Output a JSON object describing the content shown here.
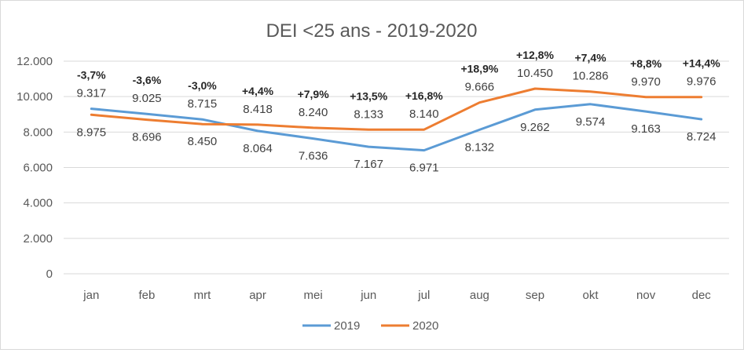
{
  "chart_data": {
    "type": "line",
    "title": "DEI <25 ans - 2019-2020",
    "categories": [
      "jan",
      "feb",
      "mrt",
      "apr",
      "mei",
      "jun",
      "jul",
      "aug",
      "sep",
      "okt",
      "nov",
      "dec"
    ],
    "series": [
      {
        "name": "2019",
        "color": "#5B9BD5",
        "values": [
          9317,
          9025,
          8715,
          8064,
          7636,
          7167,
          6971,
          8132,
          9262,
          9574,
          9163,
          8724
        ],
        "labels": [
          "9.317",
          "9.025",
          "8.715",
          "8.064",
          "7.636",
          "7.167",
          "6.971",
          "8.132",
          "9.262",
          "9.574",
          "9.163",
          "8.724"
        ]
      },
      {
        "name": "2020",
        "color": "#ED7D31",
        "values": [
          8975,
          8696,
          8450,
          8418,
          8240,
          8133,
          8140,
          9666,
          10450,
          10286,
          9970,
          9976
        ],
        "labels": [
          "8.975",
          "8.696",
          "8.450",
          "8.418",
          "8.240",
          "8.133",
          "8.140",
          "9.666",
          "10.450",
          "10.286",
          "9.970",
          "9.976"
        ]
      }
    ],
    "change_labels": [
      "-3,7%",
      "-3,6%",
      "-3,0%",
      "+4,4%",
      "+7,9%",
      "+13,5%",
      "+16,8%",
      "+18,9%",
      "+12,8%",
      "+7,4%",
      "+8,8%",
      "+14,4%"
    ],
    "ylim": [
      0,
      12000
    ],
    "yticks": [
      0,
      2000,
      4000,
      6000,
      8000,
      10000,
      12000
    ],
    "ytick_labels": [
      "0",
      "2.000",
      "4.000",
      "6.000",
      "8.000",
      "10.000",
      "12.000"
    ],
    "grid": true,
    "legend_position": "bottom"
  }
}
